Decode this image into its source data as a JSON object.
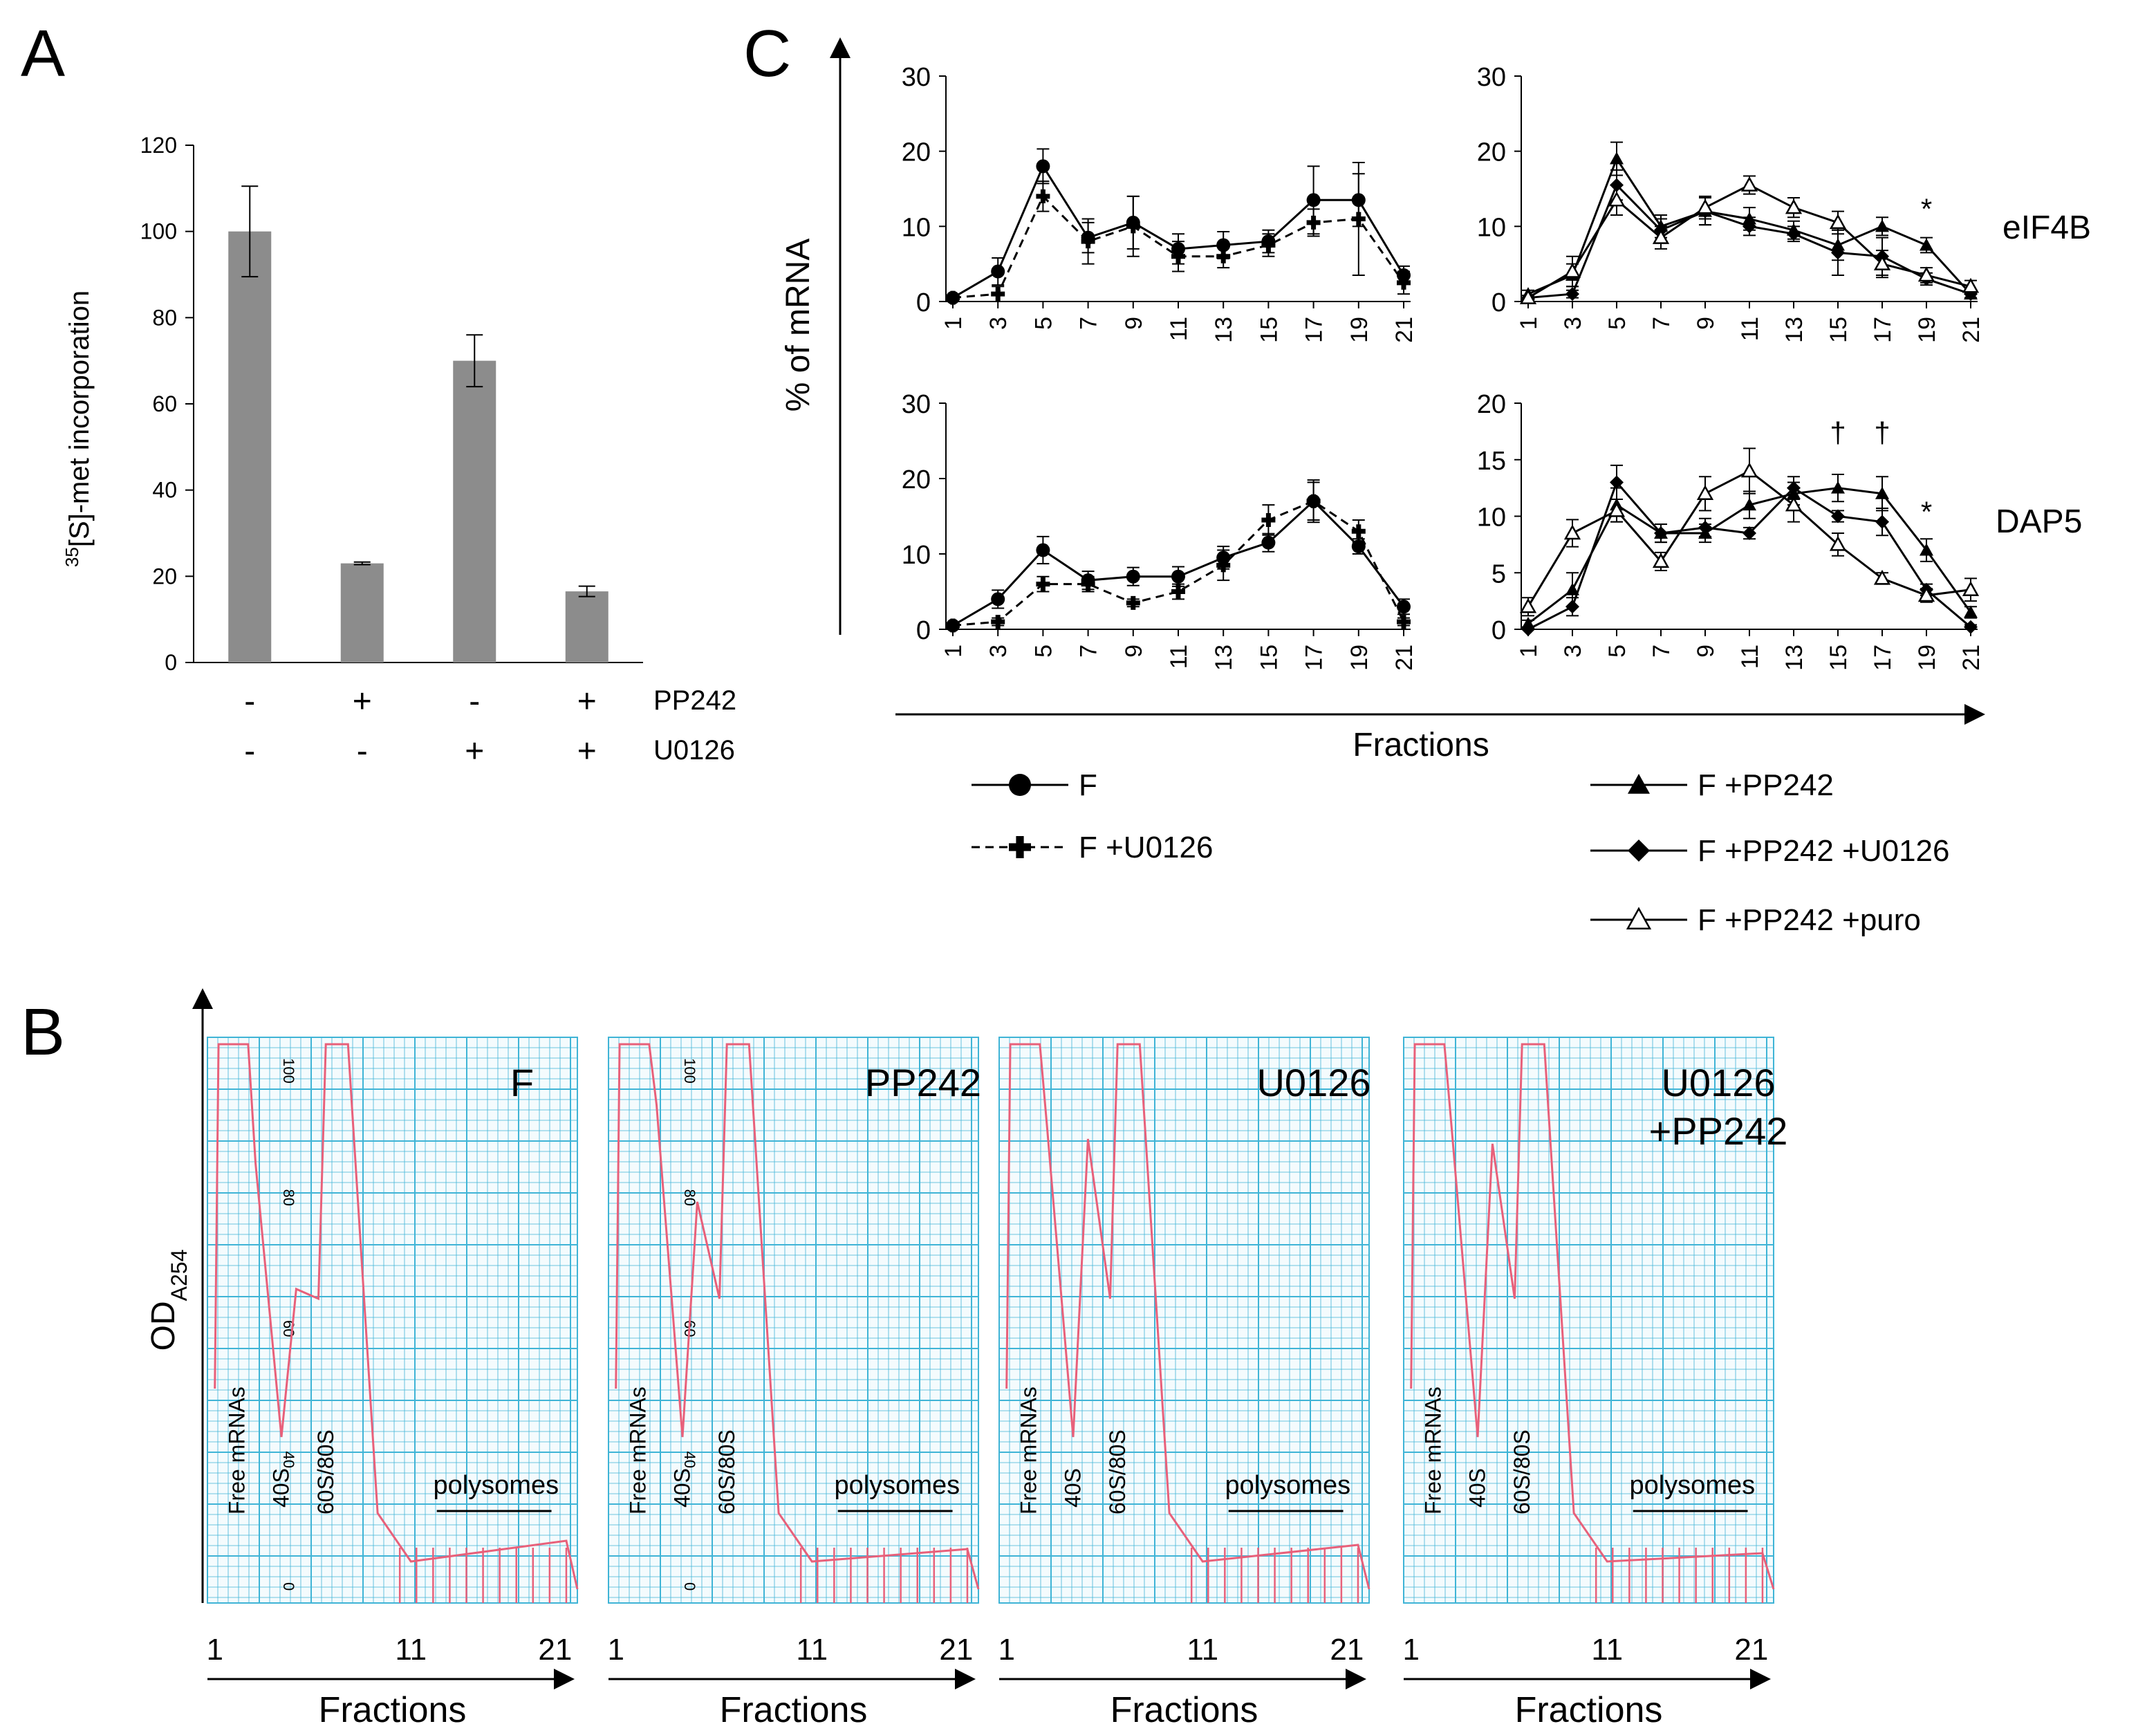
{
  "panels": {
    "A": {
      "letter": "A",
      "chart_data": {
        "type": "bar",
        "categories": [
          "- / -",
          "+ / -",
          "- / +",
          "+ / +"
        ],
        "values": [
          100,
          23,
          70,
          16.5
        ],
        "errors": [
          10.5,
          0.3,
          6,
          1.2
        ],
        "ylabel_sup": "35",
        "ylabel": "[S]-met incorporation",
        "ylim": [
          0,
          120
        ],
        "yticks": [
          "0",
          "20",
          "40",
          "60",
          "80",
          "100",
          "120"
        ],
        "bar_color": "#8c8c8c",
        "condition_rows": [
          {
            "label": "PP242",
            "signs": [
              "-",
              "+",
              "-",
              "+"
            ]
          },
          {
            "label": "U0126",
            "signs": [
              "-",
              "-",
              "+",
              "+"
            ]
          }
        ]
      }
    },
    "C": {
      "letter": "C",
      "ylabel": "% of mRNA",
      "xlabel": "Fractions",
      "xticks": [
        "1",
        "3",
        "5",
        "7",
        "9",
        "11",
        "13",
        "15",
        "17",
        "19",
        "21"
      ],
      "row_labels": [
        "eIF4B",
        "DAP5"
      ],
      "chart_data": [
        {
          "type": "line",
          "name": "eIF4B-left",
          "ylim": [
            0,
            30
          ],
          "yticks": [
            "0",
            "10",
            "20",
            "30"
          ],
          "series": [
            {
              "name": "F",
              "marker": "circle",
              "dash": false,
              "values": [
                0.5,
                4,
                18,
                8.5,
                10.5,
                7,
                7.5,
                8,
                13.5,
                13.5,
                3.5
              ],
              "errors": [
                0.3,
                1.8,
                2.3,
                2,
                3.5,
                2,
                1.8,
                1.5,
                4.5,
                3.5,
                1.2
              ]
            },
            {
              "name": "F +U0126",
              "marker": "plus",
              "dash": true,
              "values": [
                0.5,
                1,
                14,
                8,
                10,
                6,
                6,
                7.5,
                10.5,
                11,
                2.5
              ],
              "errors": [
                0.3,
                1,
                2,
                3,
                4,
                2,
                1.5,
                1.5,
                1.8,
                7.5,
                1.5
              ]
            }
          ]
        },
        {
          "type": "line",
          "name": "eIF4B-right",
          "ylim": [
            0,
            30
          ],
          "yticks": [
            "0",
            "10",
            "20",
            "30"
          ],
          "annotations": [
            {
              "text": "*",
              "fraction": 19,
              "y": 11
            }
          ],
          "series": [
            {
              "name": "F +PP242",
              "marker": "triangle",
              "dash": false,
              "values": [
                1,
                3.5,
                19,
                10,
                12,
                11,
                9.5,
                7.5,
                10,
                7.5,
                1
              ],
              "errors": [
                0.5,
                1.5,
                2.2,
                1.5,
                1.8,
                1.5,
                1.2,
                2,
                1.2,
                1,
                0.5
              ]
            },
            {
              "name": "F +PP242 +U0126",
              "marker": "diamond",
              "dash": false,
              "values": [
                0.5,
                1,
                15.5,
                9.5,
                12,
                10,
                9,
                6.5,
                6,
                3,
                1
              ],
              "errors": [
                0.3,
                0.5,
                2,
                1.5,
                1.8,
                1.2,
                1,
                3,
                2.5,
                0.8,
                0.5
              ]
            },
            {
              "name": "F +PP242 +puro",
              "marker": "triangle-open",
              "dash": false,
              "values": [
                0.5,
                4,
                13.5,
                8.5,
                12.5,
                15.5,
                12.5,
                10.5,
                5,
                3.5,
                2
              ],
              "errors": [
                0.3,
                2,
                2,
                1.5,
                1.5,
                1.2,
                1.3,
                1.5,
                1.8,
                1,
                0.8
              ]
            }
          ]
        },
        {
          "type": "line",
          "name": "DAP5-left",
          "ylim": [
            0,
            30
          ],
          "yticks": [
            "0",
            "10",
            "20",
            "30"
          ],
          "series": [
            {
              "name": "F",
              "marker": "circle",
              "dash": false,
              "values": [
                0.5,
                4,
                10.5,
                6.5,
                7,
                7,
                9.5,
                11.5,
                17,
                11,
                3
              ],
              "errors": [
                0.3,
                1.2,
                1.8,
                1.2,
                1.2,
                1.3,
                1.5,
                1.2,
                2.8,
                1,
                1
              ]
            },
            {
              "name": "F +U0126",
              "marker": "plus",
              "dash": true,
              "values": [
                0.5,
                1,
                6,
                6,
                3.5,
                5,
                8.5,
                14.5,
                17,
                13,
                1
              ],
              "errors": [
                0.3,
                0.5,
                1,
                1,
                0.5,
                1,
                2,
                2,
                2.5,
                1.5,
                0.5
              ]
            }
          ]
        },
        {
          "type": "line",
          "name": "DAP5-right",
          "ylim": [
            0,
            20
          ],
          "yticks": [
            "0",
            "5",
            "10",
            "15",
            "20"
          ],
          "annotations": [
            {
              "text": "†",
              "fraction": 15,
              "y": 16.5
            },
            {
              "text": "†",
              "fraction": 17,
              "y": 16.5
            },
            {
              "text": "*",
              "fraction": 19,
              "y": 9.5
            }
          ],
          "series": [
            {
              "name": "F +PP242",
              "marker": "triangle",
              "dash": false,
              "values": [
                0.5,
                3.5,
                11,
                8.5,
                8.5,
                11,
                12,
                12.5,
                12,
                7,
                1.5
              ],
              "errors": [
                0.3,
                1.5,
                1.5,
                0.8,
                0.8,
                1.2,
                1,
                1.2,
                1.5,
                1,
                0.5
              ]
            },
            {
              "name": "F +PP242 +U0126",
              "marker": "diamond",
              "dash": false,
              "values": [
                0,
                2,
                13,
                8.5,
                9,
                8.5,
                12.5,
                10,
                9.5,
                3.5,
                0.2
              ],
              "errors": [
                0.2,
                0.8,
                1.5,
                0.8,
                0.8,
                0.5,
                1,
                0.5,
                1.2,
                0.5,
                0.2
              ]
            },
            {
              "name": "F +PP242 +puro",
              "marker": "triangle-open",
              "dash": false,
              "values": [
                2,
                8.5,
                10.5,
                6,
                12,
                14,
                11,
                7.5,
                4.5,
                3,
                3.5
              ],
              "errors": [
                0.8,
                1.2,
                1,
                0.8,
                1.5,
                2,
                1.5,
                1,
                0.5,
                0.6,
                1
              ]
            }
          ]
        }
      ],
      "legend": [
        {
          "label": "F",
          "marker": "circle",
          "dash": false
        },
        {
          "label": "F +U0126",
          "marker": "plus",
          "dash": true
        },
        {
          "label": "F +PP242",
          "marker": "triangle",
          "dash": false
        },
        {
          "label": "F +PP242 +U0126",
          "marker": "diamond",
          "dash": false
        },
        {
          "label": "F +PP242 +puro",
          "marker": "triangle-open",
          "dash": false
        }
      ]
    },
    "B": {
      "letter": "B",
      "ylabel": "OD",
      "ylabel_sub": "A254",
      "xlabel": "Fractions",
      "xticks": [
        "1",
        "11",
        "21"
      ],
      "grid_color": "#3fb4d6",
      "trace_color": "#e8607a",
      "grid_numbers": [
        "100",
        "80",
        "60",
        "40",
        "0"
      ],
      "traces": [
        {
          "title": [
            "F"
          ],
          "peaks": {
            "free": 0.88,
            "s40": 0.62,
            "s60": 1.0,
            "poly": 0.05
          },
          "labels": {
            "free": "Free mRNAs",
            "s40": "40S",
            "s60": "60S/80S",
            "poly": "polysomes"
          }
        },
        {
          "title": [
            "PP242"
          ],
          "peaks": {
            "free": 1.0,
            "s40": 0.8,
            "s60": 1.0,
            "poly": 0.03
          },
          "labels": {
            "free": "Free mRNAs",
            "s40": "40S",
            "s60": "60S/80S",
            "poly": "polysomes"
          }
        },
        {
          "title": [
            "U0126"
          ],
          "peaks": {
            "free": 0.95,
            "s40": 0.93,
            "s60": 1.0,
            "poly": 0.04
          },
          "labels": {
            "free": "Free mRNAs",
            "s40": "40S",
            "s60": "60S/80S",
            "poly": "polysomes"
          }
        },
        {
          "title": [
            "U0126",
            "+PP242"
          ],
          "peaks": {
            "free": 0.95,
            "s40": 0.92,
            "s60": 1.0,
            "poly": 0.02
          },
          "labels": {
            "free": "Free mRNAs",
            "s40": "40S",
            "s60": "60S/80S",
            "poly": "polysomes"
          }
        }
      ]
    }
  }
}
